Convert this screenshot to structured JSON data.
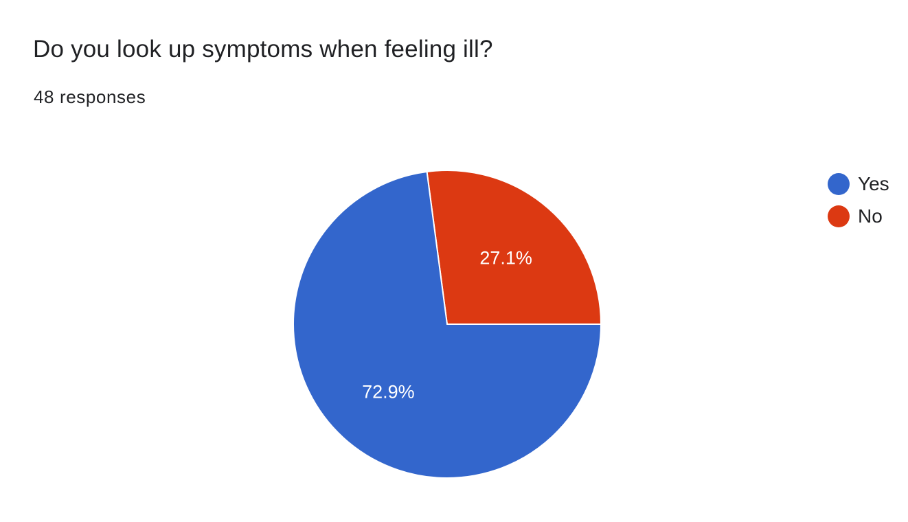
{
  "question": {
    "title": "Do you look up symptoms when feeling ill?",
    "response_count": "48 responses"
  },
  "chart_data": {
    "type": "pie",
    "categories": [
      "Yes",
      "No"
    ],
    "values": [
      72.9,
      27.1
    ],
    "value_labels": [
      "72.9%",
      "27.1%"
    ],
    "colors": [
      "#3366cc",
      "#dc3912"
    ],
    "legend_position": "right",
    "title": "",
    "xlabel": "",
    "ylabel": ""
  }
}
